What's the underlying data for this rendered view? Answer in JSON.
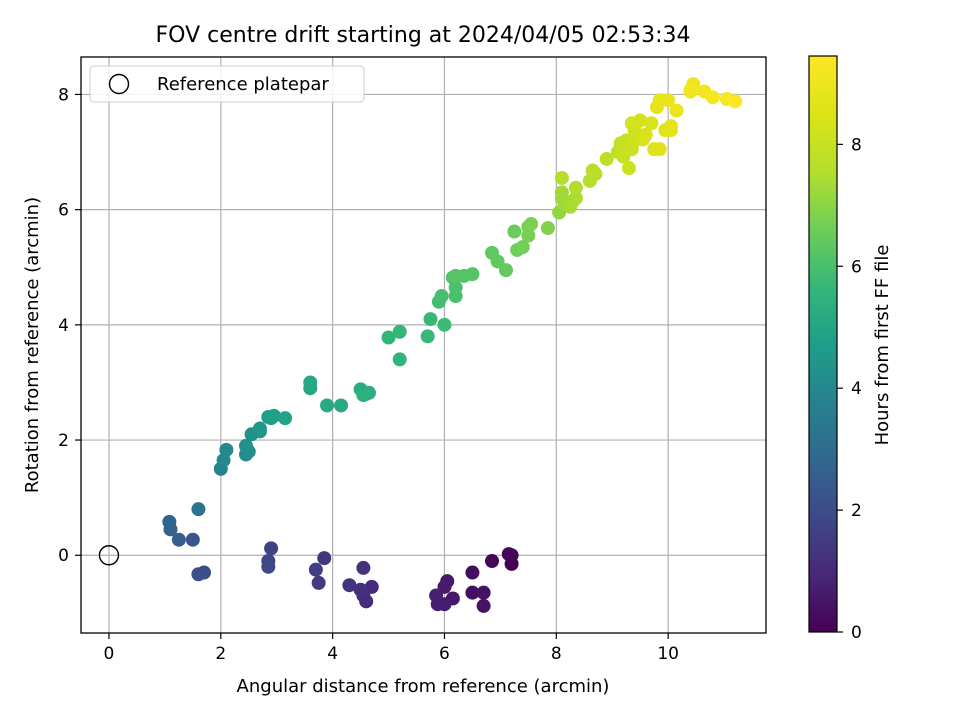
{
  "chart_data": {
    "type": "scatter",
    "title": "FOV centre drift starting at 2024/04/05 02:53:34",
    "xlabel": "Angular distance from reference (arcmin)",
    "ylabel": "Rotation from reference (arcmin)",
    "xlim": [
      -0.5,
      11.75
    ],
    "ylim": [
      -1.35,
      8.65
    ],
    "xticks": [
      "0",
      "2",
      "4",
      "6",
      "8",
      "10"
    ],
    "yticks": [
      "0",
      "2",
      "4",
      "6",
      "8"
    ],
    "grid": true,
    "legend": {
      "position": "top-left",
      "entries": [
        "Reference platepar"
      ]
    },
    "reference_point": {
      "x": 0,
      "y": 0,
      "label": "Reference platepar"
    },
    "colorbar": {
      "label": "Hours from first FF file",
      "range": [
        0,
        9.45
      ],
      "ticks": [
        "0",
        "2",
        "4",
        "6",
        "8"
      ],
      "colormap": "viridis"
    },
    "points": [
      [
        7.2,
        -0.15,
        0.0
      ],
      [
        7.2,
        0.0,
        0.1
      ],
      [
        7.15,
        0.02,
        0.15
      ],
      [
        6.85,
        -0.1,
        0.2
      ],
      [
        6.5,
        -0.3,
        0.3
      ],
      [
        6.5,
        -0.65,
        0.35
      ],
      [
        6.7,
        -0.65,
        0.4
      ],
      [
        6.7,
        -0.88,
        0.45
      ],
      [
        6.15,
        -0.75,
        0.5
      ],
      [
        6.05,
        -0.45,
        0.55
      ],
      [
        6.0,
        -0.55,
        0.6
      ],
      [
        6.0,
        -0.85,
        0.65
      ],
      [
        5.88,
        -0.85,
        0.7
      ],
      [
        5.85,
        -0.7,
        0.75
      ],
      [
        4.7,
        -0.55,
        1.0
      ],
      [
        4.6,
        -0.8,
        1.05
      ],
      [
        4.55,
        -0.7,
        1.1
      ],
      [
        4.5,
        -0.6,
        1.15
      ],
      [
        4.55,
        -0.22,
        1.2
      ],
      [
        4.3,
        -0.52,
        1.3
      ],
      [
        3.85,
        -0.05,
        1.4
      ],
      [
        3.75,
        -0.48,
        1.5
      ],
      [
        3.7,
        -0.25,
        1.6
      ],
      [
        2.9,
        0.12,
        1.7
      ],
      [
        2.85,
        -0.1,
        1.8
      ],
      [
        2.85,
        -0.2,
        1.9
      ],
      [
        1.7,
        -0.3,
        2.0
      ],
      [
        1.6,
        -0.33,
        2.1
      ],
      [
        1.5,
        0.27,
        2.3
      ],
      [
        1.25,
        0.27,
        2.5
      ],
      [
        1.1,
        0.45,
        2.65
      ],
      [
        1.08,
        0.58,
        2.75
      ],
      [
        1.6,
        0.8,
        3.2
      ],
      [
        2.0,
        1.5,
        3.8
      ],
      [
        2.05,
        1.65,
        3.9
      ],
      [
        2.1,
        1.83,
        4.0
      ],
      [
        2.45,
        1.75,
        4.1
      ],
      [
        2.5,
        1.8,
        4.2
      ],
      [
        2.45,
        1.9,
        4.25
      ],
      [
        2.55,
        2.1,
        4.3
      ],
      [
        2.7,
        2.15,
        4.4
      ],
      [
        2.7,
        2.2,
        4.5
      ],
      [
        2.85,
        2.4,
        4.6
      ],
      [
        2.95,
        2.42,
        4.7
      ],
      [
        2.9,
        2.38,
        4.8
      ],
      [
        3.15,
        2.38,
        4.9
      ],
      [
        3.6,
        2.9,
        5.0
      ],
      [
        3.6,
        3.0,
        5.05
      ],
      [
        3.9,
        2.6,
        5.1
      ],
      [
        4.15,
        2.6,
        5.15
      ],
      [
        4.5,
        2.88,
        5.2
      ],
      [
        4.6,
        2.8,
        5.25
      ],
      [
        4.65,
        2.82,
        5.3
      ],
      [
        4.55,
        2.78,
        5.35
      ],
      [
        5.2,
        3.4,
        5.5
      ],
      [
        5.0,
        3.78,
        5.6
      ],
      [
        5.2,
        3.88,
        5.65
      ],
      [
        5.7,
        3.8,
        5.7
      ],
      [
        5.75,
        4.1,
        5.75
      ],
      [
        6.0,
        4.0,
        5.8
      ],
      [
        5.9,
        4.4,
        5.9
      ],
      [
        5.95,
        4.5,
        5.95
      ],
      [
        6.2,
        4.5,
        6.0
      ],
      [
        6.2,
        4.65,
        6.05
      ],
      [
        6.15,
        4.82,
        6.1
      ],
      [
        6.35,
        4.85,
        6.15
      ],
      [
        6.5,
        4.88,
        6.2
      ],
      [
        6.2,
        4.85,
        6.25
      ],
      [
        6.85,
        5.25,
        6.35
      ],
      [
        6.95,
        5.1,
        6.4
      ],
      [
        7.1,
        4.95,
        6.45
      ],
      [
        7.25,
        5.62,
        6.55
      ],
      [
        7.3,
        5.3,
        6.6
      ],
      [
        7.4,
        5.35,
        6.65
      ],
      [
        7.5,
        5.55,
        6.7
      ],
      [
        7.5,
        5.7,
        6.75
      ],
      [
        7.55,
        5.75,
        6.8
      ],
      [
        7.85,
        5.68,
        6.85
      ],
      [
        8.05,
        5.95,
        7.1
      ],
      [
        8.1,
        6.2,
        7.2
      ],
      [
        8.15,
        6.1,
        7.25
      ],
      [
        8.1,
        6.3,
        7.3
      ],
      [
        8.3,
        6.15,
        7.35
      ],
      [
        8.25,
        6.05,
        7.4
      ],
      [
        8.35,
        6.2,
        7.45
      ],
      [
        8.35,
        6.38,
        7.5
      ],
      [
        8.1,
        6.55,
        7.55
      ],
      [
        8.6,
        6.5,
        7.6
      ],
      [
        8.65,
        6.68,
        7.65
      ],
      [
        8.7,
        6.62,
        7.7
      ],
      [
        8.9,
        6.88,
        7.8
      ],
      [
        9.1,
        7.0,
        7.85
      ],
      [
        9.15,
        7.15,
        7.9
      ],
      [
        9.25,
        7.2,
        7.95
      ],
      [
        9.2,
        6.92,
        8.0
      ],
      [
        9.3,
        6.72,
        8.05
      ],
      [
        9.35,
        7.05,
        8.1
      ],
      [
        9.4,
        7.2,
        8.15
      ],
      [
        9.4,
        7.38,
        8.2
      ],
      [
        9.35,
        7.5,
        8.25
      ],
      [
        9.5,
        7.55,
        8.3
      ],
      [
        9.55,
        7.22,
        8.35
      ],
      [
        9.6,
        7.3,
        8.4
      ],
      [
        9.7,
        7.5,
        8.45
      ],
      [
        9.75,
        7.05,
        8.5
      ],
      [
        9.85,
        7.05,
        8.55
      ],
      [
        9.95,
        7.38,
        8.6
      ],
      [
        10.05,
        7.45,
        8.65
      ],
      [
        10.05,
        7.38,
        8.7
      ],
      [
        9.8,
        7.78,
        8.75
      ],
      [
        9.85,
        7.9,
        8.8
      ],
      [
        10.0,
        7.9,
        8.85
      ],
      [
        10.15,
        7.72,
        8.9
      ],
      [
        10.4,
        8.05,
        9.0
      ],
      [
        10.45,
        8.18,
        9.05
      ],
      [
        10.4,
        8.08,
        9.1
      ],
      [
        10.65,
        8.05,
        9.15
      ],
      [
        10.8,
        7.95,
        9.2
      ],
      [
        11.05,
        7.92,
        9.3
      ],
      [
        11.2,
        7.88,
        9.4
      ]
    ]
  }
}
